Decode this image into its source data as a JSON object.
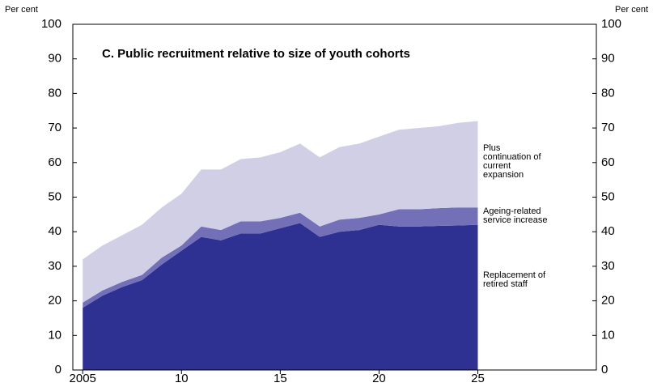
{
  "chart_data": {
    "type": "stacked_area",
    "title": "C. Public recruitment relative to size of youth cohorts",
    "ylabel": "Per cent",
    "y2label": "Per cent",
    "x": [
      2005,
      2006,
      2007,
      2008,
      2009,
      2010,
      2011,
      2012,
      2013,
      2014,
      2015,
      2016,
      2017,
      2018,
      2019,
      2020,
      2021,
      2022,
      2023,
      2024,
      2025
    ],
    "series": [
      {
        "name": "Replacement of retired staff",
        "color": "#2e3192",
        "values": [
          18,
          21.5,
          24,
          26,
          30.5,
          34.5,
          38.5,
          37.5,
          39.5,
          39.5,
          41,
          42.5,
          38.5,
          40,
          40.5,
          42,
          41.5,
          41.5,
          41.7,
          41.8,
          42
        ]
      },
      {
        "name": "Ageing-related service increase",
        "color": "#7470b8",
        "values": [
          1.5,
          1.5,
          1.5,
          1.5,
          2,
          1.5,
          3,
          3,
          3.5,
          3.5,
          3,
          3,
          3,
          3.5,
          3.5,
          3,
          5,
          5,
          5.1,
          5.2,
          5
        ]
      },
      {
        "name": "Plus continuation of current expansion",
        "color": "#d0cfe6",
        "values": [
          12.5,
          13,
          13.5,
          14.5,
          14.5,
          15,
          16.5,
          17.5,
          18,
          18.5,
          19,
          20,
          20,
          21,
          21.5,
          22.5,
          23,
          23.5,
          23.7,
          24.5,
          25
        ]
      }
    ],
    "xlim": [
      2004.5,
      2031
    ],
    "xticks": [
      {
        "value": 2005,
        "label": "2005"
      },
      {
        "value": 2010,
        "label": "10"
      },
      {
        "value": 2015,
        "label": "15"
      },
      {
        "value": 2020,
        "label": "20"
      },
      {
        "value": 2025,
        "label": "25"
      }
    ],
    "ylim": [
      0,
      100
    ],
    "yticks": [
      0,
      10,
      20,
      30,
      40,
      50,
      60,
      70,
      80,
      90,
      100
    ],
    "y2lim": [
      0,
      100
    ],
    "y2ticks": [
      0,
      10,
      20,
      30,
      40,
      50,
      60,
      70,
      80,
      90,
      100
    ]
  }
}
